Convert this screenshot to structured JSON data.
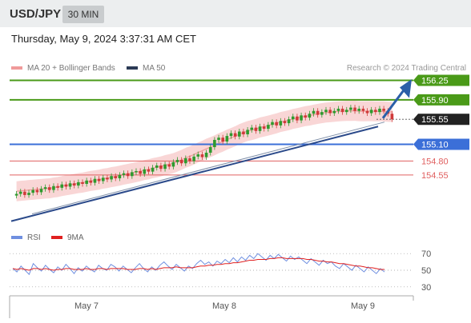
{
  "header": {
    "symbol": "USD/JPY",
    "timeframe": "30 MIN"
  },
  "datetime": "Thursday, May 9, 2024 3:37:31 AM CET",
  "legend": {
    "ma20": "MA 20 + Bollinger Bands",
    "ma50": "MA 50",
    "credit": "Research © 2024 Trading Central"
  },
  "rsi_legend": {
    "rsi": "RSI",
    "ma": "9MA"
  },
  "colors": {
    "green": "#4a9a18",
    "blue": "#3b6fd8",
    "red": "#e06060",
    "candle_up": "#2e9a2e",
    "candle_down": "#d03a3a",
    "dark": "#2b3a55",
    "pink": "#f7c8c8"
  },
  "chart_data": [
    {
      "type": "candlestick",
      "title": "USD/JPY",
      "x_labels": [
        "May 7",
        "May 8",
        "May 9"
      ],
      "ylim": [
        153.6,
        156.4
      ],
      "price_levels": [
        {
          "value": 156.25,
          "label": "156.25",
          "style": "green-target"
        },
        {
          "value": 155.9,
          "label": "155.90",
          "style": "green"
        },
        {
          "value": 155.55,
          "label": "155.55",
          "style": "current"
        },
        {
          "value": 155.1,
          "label": "155.10",
          "style": "blue-pivot"
        },
        {
          "value": 154.8,
          "label": "154.80",
          "style": "red"
        },
        {
          "value": 154.55,
          "label": "154.55",
          "style": "red"
        }
      ],
      "close": [
        154.21,
        154.25,
        154.19,
        154.23,
        154.28,
        154.24,
        154.3,
        154.33,
        154.28,
        154.35,
        154.32,
        154.38,
        154.34,
        154.4,
        154.36,
        154.42,
        154.39,
        154.45,
        154.41,
        154.48,
        154.44,
        154.5,
        154.47,
        154.53,
        154.49,
        154.55,
        154.58,
        154.53,
        154.6,
        154.62,
        154.57,
        154.65,
        154.61,
        154.68,
        154.72,
        154.66,
        154.74,
        154.7,
        154.78,
        154.82,
        154.76,
        154.85,
        154.8,
        154.88,
        154.92,
        154.87,
        154.95,
        155.05,
        155.18,
        155.22,
        155.15,
        155.25,
        155.3,
        155.24,
        155.33,
        155.28,
        155.36,
        155.4,
        155.34,
        155.42,
        155.38,
        155.45,
        155.5,
        155.44,
        155.52,
        155.48,
        155.55,
        155.6,
        155.53,
        155.62,
        155.58,
        155.65,
        155.7,
        155.63,
        155.68,
        155.72,
        155.66,
        155.7,
        155.74,
        155.68,
        155.72,
        155.76,
        155.7,
        155.74,
        155.7,
        155.66,
        155.72,
        155.68,
        155.74,
        155.7,
        155.65,
        155.55
      ],
      "ma20": "pink line through candles",
      "ma50": "dark blue rising line",
      "trendline": "rising support",
      "arrow": "up toward 156.25"
    },
    {
      "type": "line",
      "title": "RSI",
      "series": [
        {
          "name": "RSI"
        },
        {
          "name": "9MA"
        }
      ],
      "levels": [
        70,
        50,
        30
      ],
      "level_labels": [
        "70",
        "50",
        "30"
      ],
      "rsi": [
        52,
        48,
        55,
        50,
        45,
        58,
        53,
        49,
        56,
        51,
        47,
        54,
        50,
        57,
        52,
        46,
        53,
        49,
        55,
        51,
        48,
        56,
        52,
        50,
        57,
        54,
        49,
        55,
        51,
        47,
        53,
        58,
        52,
        48,
        54,
        50,
        56,
        60,
        55,
        51,
        57,
        53,
        49,
        55,
        52,
        58,
        62,
        57,
        60,
        55,
        61,
        58,
        63,
        59,
        65,
        60,
        66,
        62,
        68,
        64,
        70,
        66,
        62,
        68,
        64,
        69,
        65,
        61,
        67,
        63,
        66,
        62,
        58,
        64,
        60,
        56,
        62,
        58,
        60,
        55,
        52,
        58,
        54,
        50,
        56,
        52,
        48,
        54,
        50,
        46,
        52,
        48
      ],
      "rsi_ma": [
        52,
        51,
        52,
        51,
        50,
        52,
        52,
        51,
        52,
        51,
        50,
        51,
        51,
        52,
        52,
        51,
        51,
        51,
        52,
        51,
        51,
        52,
        52,
        51,
        52,
        52,
        52,
        52,
        51,
        51,
        51,
        52,
        52,
        51,
        52,
        51,
        52,
        53,
        53,
        53,
        54,
        53,
        53,
        53,
        53,
        54,
        55,
        55,
        56,
        56,
        57,
        57,
        58,
        58,
        59,
        59,
        60,
        61,
        62,
        62,
        63,
        63,
        63,
        64,
        64,
        65,
        65,
        64,
        64,
        64,
        64,
        64,
        63,
        63,
        62,
        61,
        61,
        60,
        60,
        59,
        58,
        58,
        57,
        56,
        55,
        55,
        54,
        53,
        53,
        52,
        51,
        51
      ]
    }
  ]
}
